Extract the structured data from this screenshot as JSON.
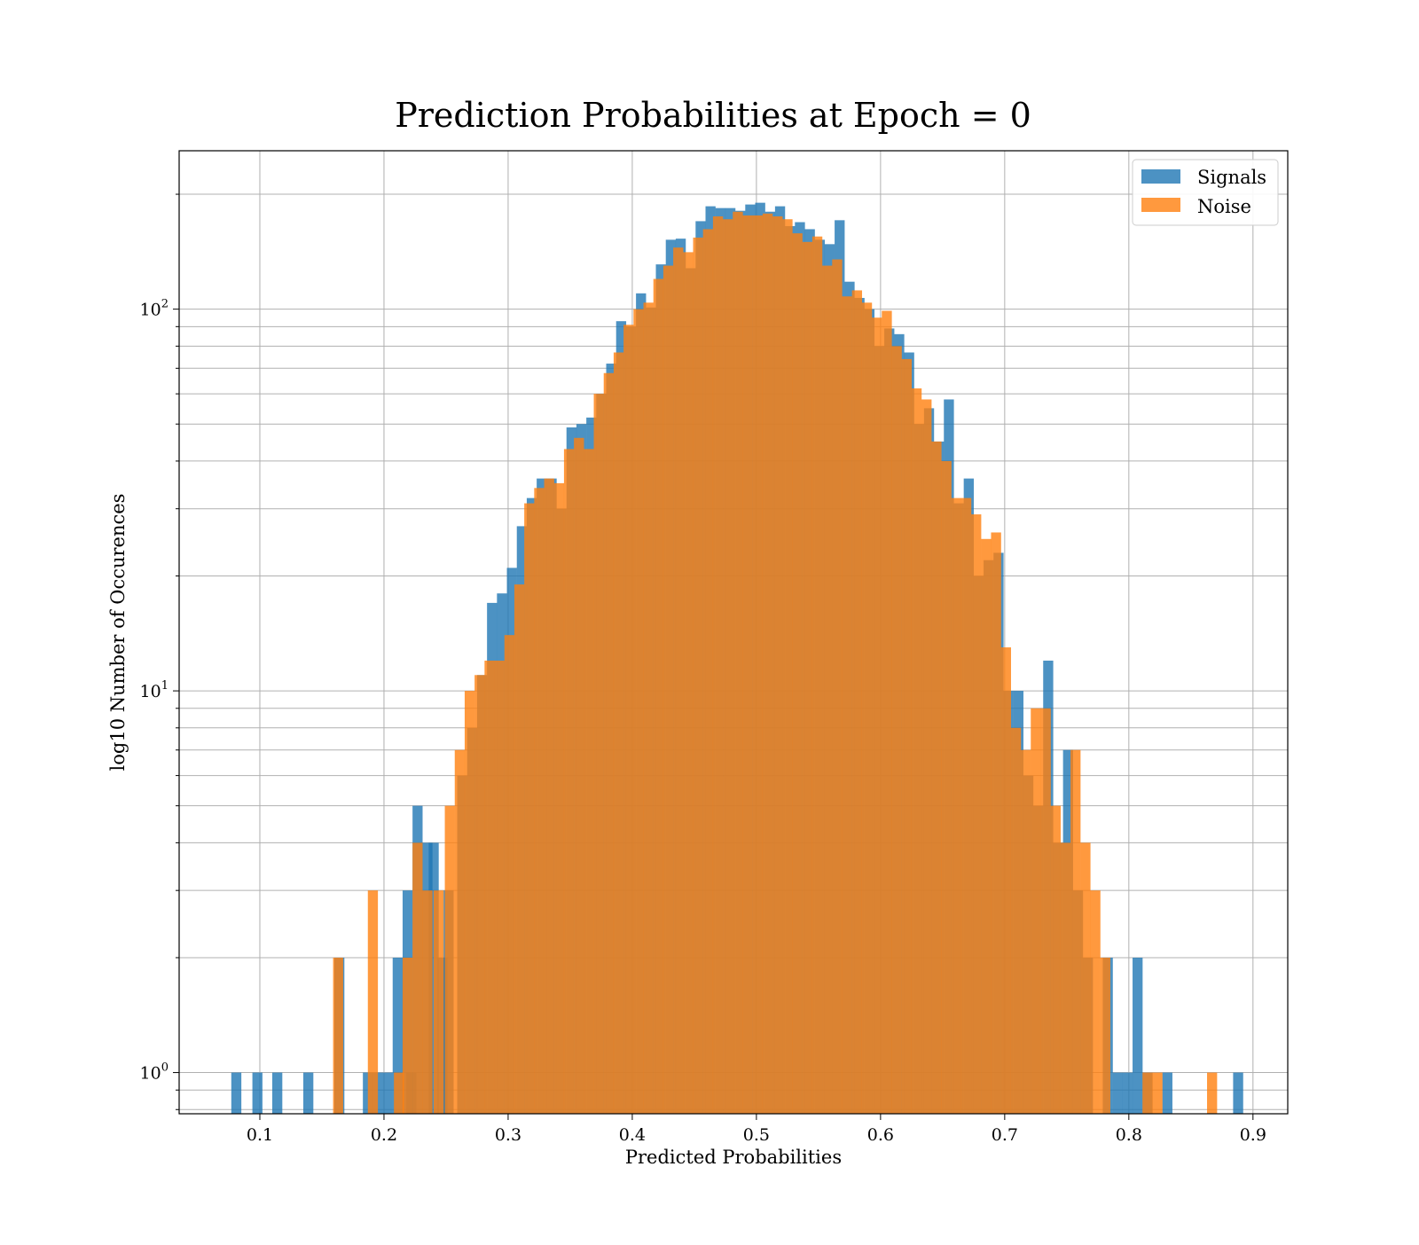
{
  "chart_data": {
    "type": "bar",
    "title": "Prediction Probabilities at Epoch = 0",
    "xlabel": "Predicted Probabilities",
    "ylabel": "log10 Number of Occurences",
    "y_scale": "log",
    "xlim": [
      0.035,
      0.928
    ],
    "ylim": [
      0.78,
      260
    ],
    "grid": true,
    "legend_position": "top-right",
    "x_ticks": [
      {
        "value": 0.1,
        "label": "0.1"
      },
      {
        "value": 0.2,
        "label": "0.2"
      },
      {
        "value": 0.3,
        "label": "0.3"
      },
      {
        "value": 0.4,
        "label": "0.4"
      },
      {
        "value": 0.5,
        "label": "0.5"
      },
      {
        "value": 0.6,
        "label": "0.6"
      },
      {
        "value": 0.7,
        "label": "0.7"
      },
      {
        "value": 0.8,
        "label": "0.8"
      },
      {
        "value": 0.9,
        "label": "0.9"
      }
    ],
    "y_ticks": [
      {
        "value": 1,
        "base": "10",
        "exp": "0"
      },
      {
        "value": 10,
        "base": "10",
        "exp": "1"
      },
      {
        "value": 100,
        "base": "10",
        "exp": "2"
      }
    ],
    "series": [
      {
        "name": "Signals",
        "color": "#1f77b4",
        "opacity": 0.8,
        "bin_width": 0.0081,
        "bins": [
          [
            0.077,
            1
          ],
          [
            0.094,
            1
          ],
          [
            0.11,
            1
          ],
          [
            0.135,
            1
          ],
          [
            0.16,
            2
          ],
          [
            0.183,
            1
          ],
          [
            0.191,
            1
          ],
          [
            0.199,
            1
          ],
          [
            0.207,
            2
          ],
          [
            0.215,
            3
          ],
          [
            0.218,
            1
          ],
          [
            0.223,
            5
          ],
          [
            0.231,
            4
          ],
          [
            0.236,
            4
          ],
          [
            0.243,
            2
          ],
          [
            0.248,
            3
          ],
          [
            0.259,
            6
          ],
          [
            0.267,
            8
          ],
          [
            0.275,
            11
          ],
          [
            0.283,
            17
          ],
          [
            0.291,
            18
          ],
          [
            0.299,
            21
          ],
          [
            0.307,
            27
          ],
          [
            0.315,
            32
          ],
          [
            0.323,
            36
          ],
          [
            0.331,
            36
          ],
          [
            0.339,
            30
          ],
          [
            0.347,
            49
          ],
          [
            0.355,
            50
          ],
          [
            0.363,
            52
          ],
          [
            0.371,
            60
          ],
          [
            0.379,
            72
          ],
          [
            0.387,
            93
          ],
          [
            0.395,
            90
          ],
          [
            0.403,
            110
          ],
          [
            0.411,
            101
          ],
          [
            0.419,
            131
          ],
          [
            0.427,
            152
          ],
          [
            0.435,
            153
          ],
          [
            0.443,
            128
          ],
          [
            0.451,
            170
          ],
          [
            0.459,
            186
          ],
          [
            0.467,
            184
          ],
          [
            0.475,
            184
          ],
          [
            0.483,
            181
          ],
          [
            0.491,
            188
          ],
          [
            0.499,
            190
          ],
          [
            0.507,
            180
          ],
          [
            0.515,
            186
          ],
          [
            0.523,
            165
          ],
          [
            0.531,
            169
          ],
          [
            0.539,
            162
          ],
          [
            0.547,
            152
          ],
          [
            0.555,
            148
          ],
          [
            0.563,
            171
          ],
          [
            0.571,
            118
          ],
          [
            0.579,
            107
          ],
          [
            0.587,
            100
          ],
          [
            0.595,
            80
          ],
          [
            0.603,
            89
          ],
          [
            0.611,
            86
          ],
          [
            0.619,
            77
          ],
          [
            0.627,
            50
          ],
          [
            0.635,
            55
          ],
          [
            0.643,
            45
          ],
          [
            0.651,
            58
          ],
          [
            0.659,
            31
          ],
          [
            0.667,
            36
          ],
          [
            0.675,
            20
          ],
          [
            0.683,
            22
          ],
          [
            0.691,
            23
          ],
          [
            0.699,
            10
          ],
          [
            0.707,
            10
          ],
          [
            0.715,
            6
          ],
          [
            0.723,
            5
          ],
          [
            0.731,
            12
          ],
          [
            0.739,
            4
          ],
          [
            0.747,
            7
          ],
          [
            0.755,
            3
          ],
          [
            0.763,
            2
          ],
          [
            0.779,
            2
          ],
          [
            0.787,
            1
          ],
          [
            0.795,
            1
          ],
          [
            0.803,
            2
          ],
          [
            0.811,
            1
          ],
          [
            0.827,
            1
          ],
          [
            0.884,
            1
          ]
        ]
      },
      {
        "name": "Noise",
        "color": "#ff7f0e",
        "opacity": 0.8,
        "bin_width": 0.0081,
        "bins": [
          [
            0.159,
            2
          ],
          [
            0.187,
            3
          ],
          [
            0.208,
            1
          ],
          [
            0.215,
            2
          ],
          [
            0.223,
            4
          ],
          [
            0.231,
            3
          ],
          [
            0.24,
            3
          ],
          [
            0.249,
            5
          ],
          [
            0.257,
            7
          ],
          [
            0.265,
            10
          ],
          [
            0.273,
            11
          ],
          [
            0.281,
            12
          ],
          [
            0.289,
            12
          ],
          [
            0.297,
            14
          ],
          [
            0.305,
            19
          ],
          [
            0.313,
            31
          ],
          [
            0.321,
            34
          ],
          [
            0.329,
            36
          ],
          [
            0.337,
            35
          ],
          [
            0.345,
            43
          ],
          [
            0.353,
            46
          ],
          [
            0.361,
            43
          ],
          [
            0.369,
            60
          ],
          [
            0.377,
            68
          ],
          [
            0.385,
            77
          ],
          [
            0.393,
            91
          ],
          [
            0.401,
            100
          ],
          [
            0.409,
            104
          ],
          [
            0.417,
            120
          ],
          [
            0.425,
            130
          ],
          [
            0.433,
            145
          ],
          [
            0.441,
            141
          ],
          [
            0.449,
            154
          ],
          [
            0.457,
            162
          ],
          [
            0.465,
            175
          ],
          [
            0.473,
            172
          ],
          [
            0.481,
            180
          ],
          [
            0.489,
            176
          ],
          [
            0.497,
            176
          ],
          [
            0.505,
            178
          ],
          [
            0.513,
            175
          ],
          [
            0.521,
            172
          ],
          [
            0.529,
            158
          ],
          [
            0.537,
            150
          ],
          [
            0.545,
            155
          ],
          [
            0.553,
            130
          ],
          [
            0.561,
            135
          ],
          [
            0.569,
            108
          ],
          [
            0.577,
            112
          ],
          [
            0.585,
            104
          ],
          [
            0.593,
            95
          ],
          [
            0.601,
            99
          ],
          [
            0.609,
            80
          ],
          [
            0.617,
            74
          ],
          [
            0.625,
            62
          ],
          [
            0.633,
            58
          ],
          [
            0.641,
            45
          ],
          [
            0.649,
            40
          ],
          [
            0.657,
            32
          ],
          [
            0.665,
            32
          ],
          [
            0.673,
            29
          ],
          [
            0.681,
            25
          ],
          [
            0.689,
            26
          ],
          [
            0.697,
            13
          ],
          [
            0.705,
            8
          ],
          [
            0.713,
            7
          ],
          [
            0.721,
            9
          ],
          [
            0.729,
            9
          ],
          [
            0.737,
            5
          ],
          [
            0.745,
            4
          ],
          [
            0.753,
            7
          ],
          [
            0.761,
            4
          ],
          [
            0.769,
            3
          ],
          [
            0.777,
            2
          ],
          [
            0.811,
            1
          ],
          [
            0.819,
            1
          ],
          [
            0.863,
            1
          ]
        ]
      }
    ]
  }
}
